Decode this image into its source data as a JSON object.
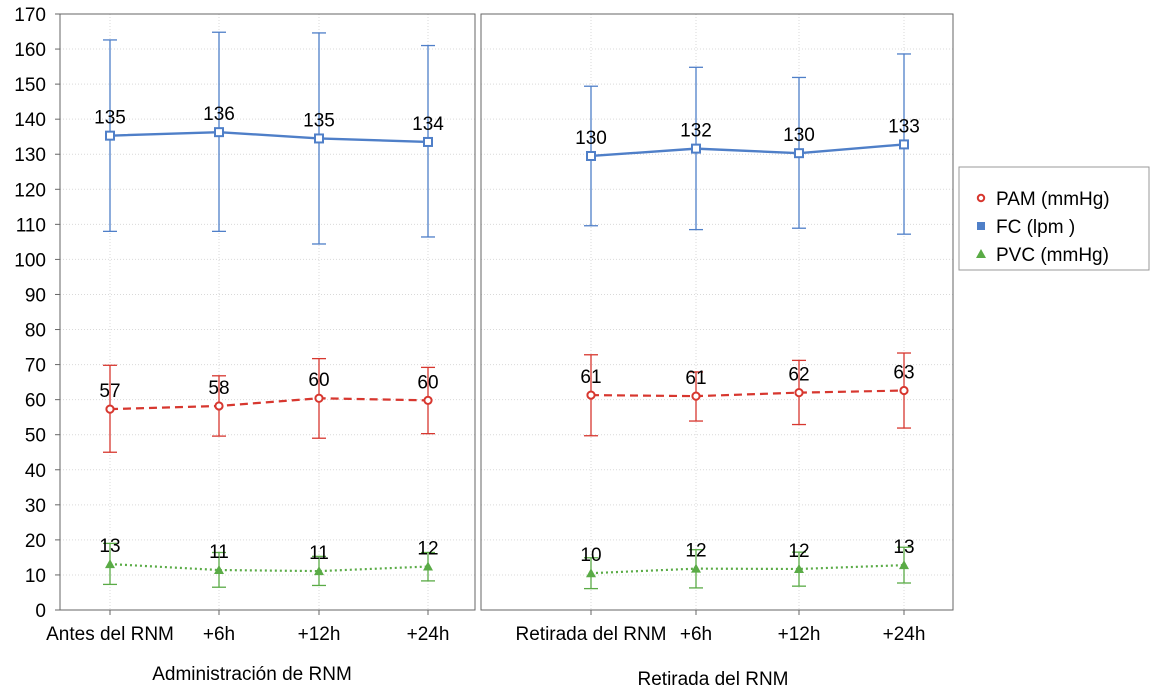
{
  "chart_data": {
    "type": "line",
    "ylim": [
      0,
      170
    ],
    "yticks": [
      0,
      10,
      20,
      30,
      40,
      50,
      60,
      70,
      80,
      90,
      100,
      110,
      120,
      130,
      140,
      150,
      160,
      170
    ],
    "grid": true,
    "legend_position": "right",
    "panels": [
      {
        "group_label": "Administración de RNM",
        "categories": [
          "Antes del RNM",
          "+6h",
          "+12h",
          "+24h"
        ]
      },
      {
        "group_label": "Retirada del RNM",
        "categories": [
          "Retirada del RNM",
          "+6h",
          "+12h",
          "+24h"
        ]
      }
    ],
    "series": [
      {
        "name": "PAM (mmHg)",
        "color": "#d7372f",
        "marker": "circle",
        "line_style": "dashed",
        "panels": [
          {
            "values": [
              57.3,
              58.2,
              60.4,
              59.8
            ],
            "labels": [
              "57",
              "58",
              "60",
              "60"
            ],
            "err_low": [
              45.0,
              49.6,
              49.0,
              50.3
            ],
            "err_high": [
              69.8,
              66.8,
              71.7,
              69.2
            ]
          },
          {
            "values": [
              61.3,
              61.0,
              62.0,
              62.6
            ],
            "labels": [
              "61",
              "61",
              "62",
              "63"
            ],
            "err_low": [
              49.7,
              53.9,
              52.9,
              51.9
            ],
            "err_high": [
              72.8,
              67.9,
              71.2,
              73.3
            ]
          }
        ]
      },
      {
        "name": "FC  (lpm )",
        "color": "#4f7fc8",
        "marker": "square",
        "line_style": "solid",
        "panels": [
          {
            "values": [
              135.3,
              136.3,
              134.5,
              133.5
            ],
            "labels": [
              "135",
              "136",
              "135",
              "134"
            ],
            "err_low": [
              108.0,
              108.0,
              104.4,
              106.4
            ],
            "err_high": [
              162.6,
              164.8,
              164.6,
              161.0
            ]
          },
          {
            "values": [
              129.5,
              131.6,
              130.3,
              132.8
            ],
            "labels": [
              "130",
              "132",
              "130",
              "133"
            ],
            "err_low": [
              109.6,
              108.5,
              108.9,
              107.2
            ],
            "err_high": [
              149.4,
              154.8,
              151.9,
              158.6
            ]
          }
        ]
      },
      {
        "name": "PVC (mmHg)",
        "color": "#5aab46",
        "marker": "triangle",
        "line_style": "dotted",
        "panels": [
          {
            "values": [
              13.1,
              11.4,
              11.1,
              12.4
            ],
            "labels": [
              "13",
              "11",
              "11",
              "12"
            ],
            "err_low": [
              7.3,
              6.5,
              7.0,
              8.3
            ],
            "err_high": [
              19.0,
              16.4,
              15.3,
              16.4
            ]
          },
          {
            "values": [
              10.5,
              11.8,
              11.7,
              12.8
            ],
            "labels": [
              "10",
              "12",
              "12",
              "13"
            ],
            "err_low": [
              6.1,
              6.3,
              6.8,
              7.7
            ],
            "err_high": [
              14.9,
              17.2,
              16.5,
              17.9
            ]
          }
        ]
      }
    ]
  }
}
